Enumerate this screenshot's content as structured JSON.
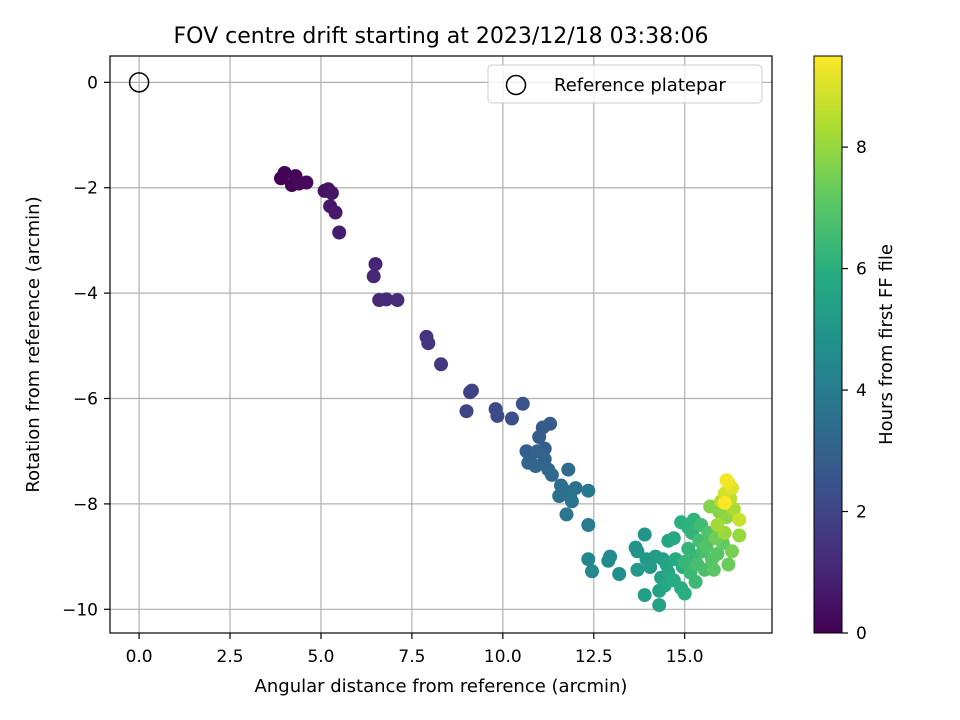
{
  "chart_data": {
    "type": "scatter",
    "title": "FOV centre drift starting at 2023/12/18 03:38:06",
    "xlabel": "Angular distance from reference (arcmin)",
    "ylabel": "Rotation from reference (arcmin)",
    "xlim": [
      -0.8,
      17.4
    ],
    "ylim": [
      -10.45,
      0.5
    ],
    "xticks": [
      0.0,
      2.5,
      5.0,
      7.5,
      10.0,
      12.5,
      15.0
    ],
    "xtick_labels": [
      "0.0",
      "2.5",
      "5.0",
      "7.5",
      "10.0",
      "12.5",
      "15.0"
    ],
    "yticks": [
      0,
      -2,
      -4,
      -6,
      -8,
      -10
    ],
    "ytick_labels": [
      "0",
      "−2",
      "−4",
      "−6",
      "−8",
      "−10"
    ],
    "grid": true,
    "legend": {
      "position": "top-right",
      "entries": [
        "Reference platepar"
      ]
    },
    "colorbar": {
      "label": "Hours from first FF file",
      "range": [
        0,
        9.5
      ],
      "colormap": "viridis",
      "ticks": [
        0,
        2,
        4,
        6,
        8
      ],
      "tick_labels": [
        "0",
        "2",
        "4",
        "6",
        "8"
      ]
    },
    "reference_point": {
      "x": 0,
      "y": 0
    },
    "series": [
      {
        "points": [
          [
            3.9,
            -1.82,
            0.0
          ],
          [
            4.0,
            -1.72,
            0.05
          ],
          [
            4.2,
            -1.95,
            0.1
          ],
          [
            4.3,
            -1.78,
            0.15
          ],
          [
            4.4,
            -1.92,
            0.2
          ],
          [
            4.6,
            -1.9,
            0.25
          ],
          [
            5.1,
            -2.06,
            0.45
          ],
          [
            5.2,
            -2.03,
            0.5
          ],
          [
            5.3,
            -2.1,
            0.55
          ],
          [
            5.25,
            -2.35,
            0.6
          ],
          [
            5.4,
            -2.47,
            0.65
          ],
          [
            5.5,
            -2.85,
            0.75
          ],
          [
            6.5,
            -3.45,
            1.0
          ],
          [
            6.45,
            -3.68,
            1.05
          ],
          [
            6.6,
            -4.13,
            1.1
          ],
          [
            6.8,
            -4.12,
            1.15
          ],
          [
            7.1,
            -4.13,
            1.2
          ],
          [
            7.9,
            -4.83,
            1.45
          ],
          [
            7.95,
            -4.95,
            1.5
          ],
          [
            8.3,
            -5.35,
            1.6
          ],
          [
            9.1,
            -5.88,
            1.85
          ],
          [
            9.15,
            -5.85,
            1.9
          ],
          [
            9.0,
            -6.24,
            1.95
          ],
          [
            9.8,
            -6.2,
            2.15
          ],
          [
            9.85,
            -6.33,
            2.2
          ],
          [
            10.25,
            -6.38,
            2.35
          ],
          [
            10.55,
            -6.1,
            2.45
          ],
          [
            11.1,
            -6.55,
            2.7
          ],
          [
            11.3,
            -6.48,
            2.75
          ],
          [
            11.0,
            -6.73,
            2.8
          ],
          [
            11.15,
            -6.95,
            2.85
          ],
          [
            10.65,
            -7.0,
            2.9
          ],
          [
            10.75,
            -7.1,
            2.95
          ],
          [
            10.95,
            -7.0,
            3.0
          ],
          [
            11.15,
            -7.15,
            3.05
          ],
          [
            10.7,
            -7.22,
            3.1
          ],
          [
            10.9,
            -7.28,
            3.15
          ],
          [
            11.25,
            -7.35,
            3.2
          ],
          [
            11.35,
            -7.45,
            3.25
          ],
          [
            11.8,
            -7.35,
            3.35
          ],
          [
            11.6,
            -7.65,
            3.4
          ],
          [
            11.7,
            -7.75,
            3.45
          ],
          [
            11.55,
            -7.85,
            3.5
          ],
          [
            11.85,
            -7.85,
            3.55
          ],
          [
            12.0,
            -7.7,
            3.6
          ],
          [
            11.9,
            -7.95,
            3.65
          ],
          [
            11.75,
            -8.2,
            3.7
          ],
          [
            12.35,
            -7.75,
            3.85
          ],
          [
            12.35,
            -8.4,
            4.0
          ],
          [
            12.35,
            -9.05,
            4.4
          ],
          [
            12.45,
            -9.28,
            4.45
          ],
          [
            12.95,
            -9.0,
            4.55
          ],
          [
            12.9,
            -9.08,
            4.6
          ],
          [
            13.2,
            -9.33,
            4.7
          ],
          [
            13.65,
            -8.83,
            4.9
          ],
          [
            13.7,
            -8.9,
            4.95
          ],
          [
            13.9,
            -8.58,
            5.0
          ],
          [
            13.7,
            -9.25,
            5.1
          ],
          [
            13.95,
            -9.05,
            5.15
          ],
          [
            14.05,
            -9.2,
            5.2
          ],
          [
            14.2,
            -9.0,
            5.25
          ],
          [
            14.4,
            -9.05,
            5.3
          ],
          [
            13.9,
            -9.73,
            5.35
          ],
          [
            14.35,
            -9.4,
            5.4
          ],
          [
            14.3,
            -9.65,
            5.45
          ],
          [
            14.3,
            -9.92,
            5.5
          ],
          [
            14.55,
            -8.7,
            5.55
          ],
          [
            14.5,
            -9.15,
            5.6
          ],
          [
            14.55,
            -9.3,
            5.65
          ],
          [
            14.45,
            -9.55,
            5.7
          ],
          [
            14.7,
            -8.65,
            5.75
          ],
          [
            14.75,
            -9.05,
            5.8
          ],
          [
            14.95,
            -9.2,
            5.85
          ],
          [
            14.7,
            -9.45,
            5.9
          ],
          [
            14.9,
            -9.6,
            5.95
          ],
          [
            15.0,
            -9.7,
            6.0
          ],
          [
            14.9,
            -8.35,
            6.05
          ],
          [
            15.1,
            -8.45,
            6.1
          ],
          [
            15.25,
            -8.3,
            6.15
          ],
          [
            15.2,
            -8.55,
            6.2
          ],
          [
            15.1,
            -8.85,
            6.25
          ],
          [
            15.3,
            -9.0,
            6.3
          ],
          [
            15.0,
            -9.1,
            6.35
          ],
          [
            15.15,
            -9.3,
            6.4
          ],
          [
            15.3,
            -9.48,
            6.45
          ],
          [
            15.45,
            -8.4,
            6.55
          ],
          [
            15.4,
            -8.7,
            6.6
          ],
          [
            15.5,
            -8.9,
            6.65
          ],
          [
            15.35,
            -9.15,
            6.7
          ],
          [
            15.55,
            -9.25,
            6.75
          ],
          [
            15.65,
            -8.55,
            6.85
          ],
          [
            15.6,
            -8.8,
            6.9
          ],
          [
            15.75,
            -9.05,
            6.95
          ],
          [
            15.9,
            -8.95,
            7.0
          ],
          [
            15.8,
            -9.25,
            7.1
          ],
          [
            16.05,
            -8.75,
            7.2
          ],
          [
            16.2,
            -9.15,
            7.35
          ],
          [
            15.85,
            -8.65,
            7.4
          ],
          [
            16.3,
            -8.9,
            7.55
          ],
          [
            15.7,
            -8.05,
            7.7
          ],
          [
            15.95,
            -8.15,
            7.8
          ],
          [
            16.15,
            -8.25,
            7.9
          ],
          [
            16.5,
            -8.6,
            8.0
          ],
          [
            16.1,
            -8.55,
            8.1
          ],
          [
            15.9,
            -8.4,
            8.2
          ],
          [
            16.35,
            -8.1,
            8.3
          ],
          [
            16.0,
            -7.95,
            8.45
          ],
          [
            16.25,
            -7.9,
            8.6
          ],
          [
            16.5,
            -8.3,
            8.75
          ],
          [
            16.1,
            -7.8,
            8.9
          ],
          [
            16.3,
            -7.7,
            9.05
          ],
          [
            16.2,
            -7.6,
            9.2
          ],
          [
            16.15,
            -7.55,
            9.35
          ],
          [
            16.1,
            -7.98,
            9.5
          ]
        ]
      }
    ]
  }
}
